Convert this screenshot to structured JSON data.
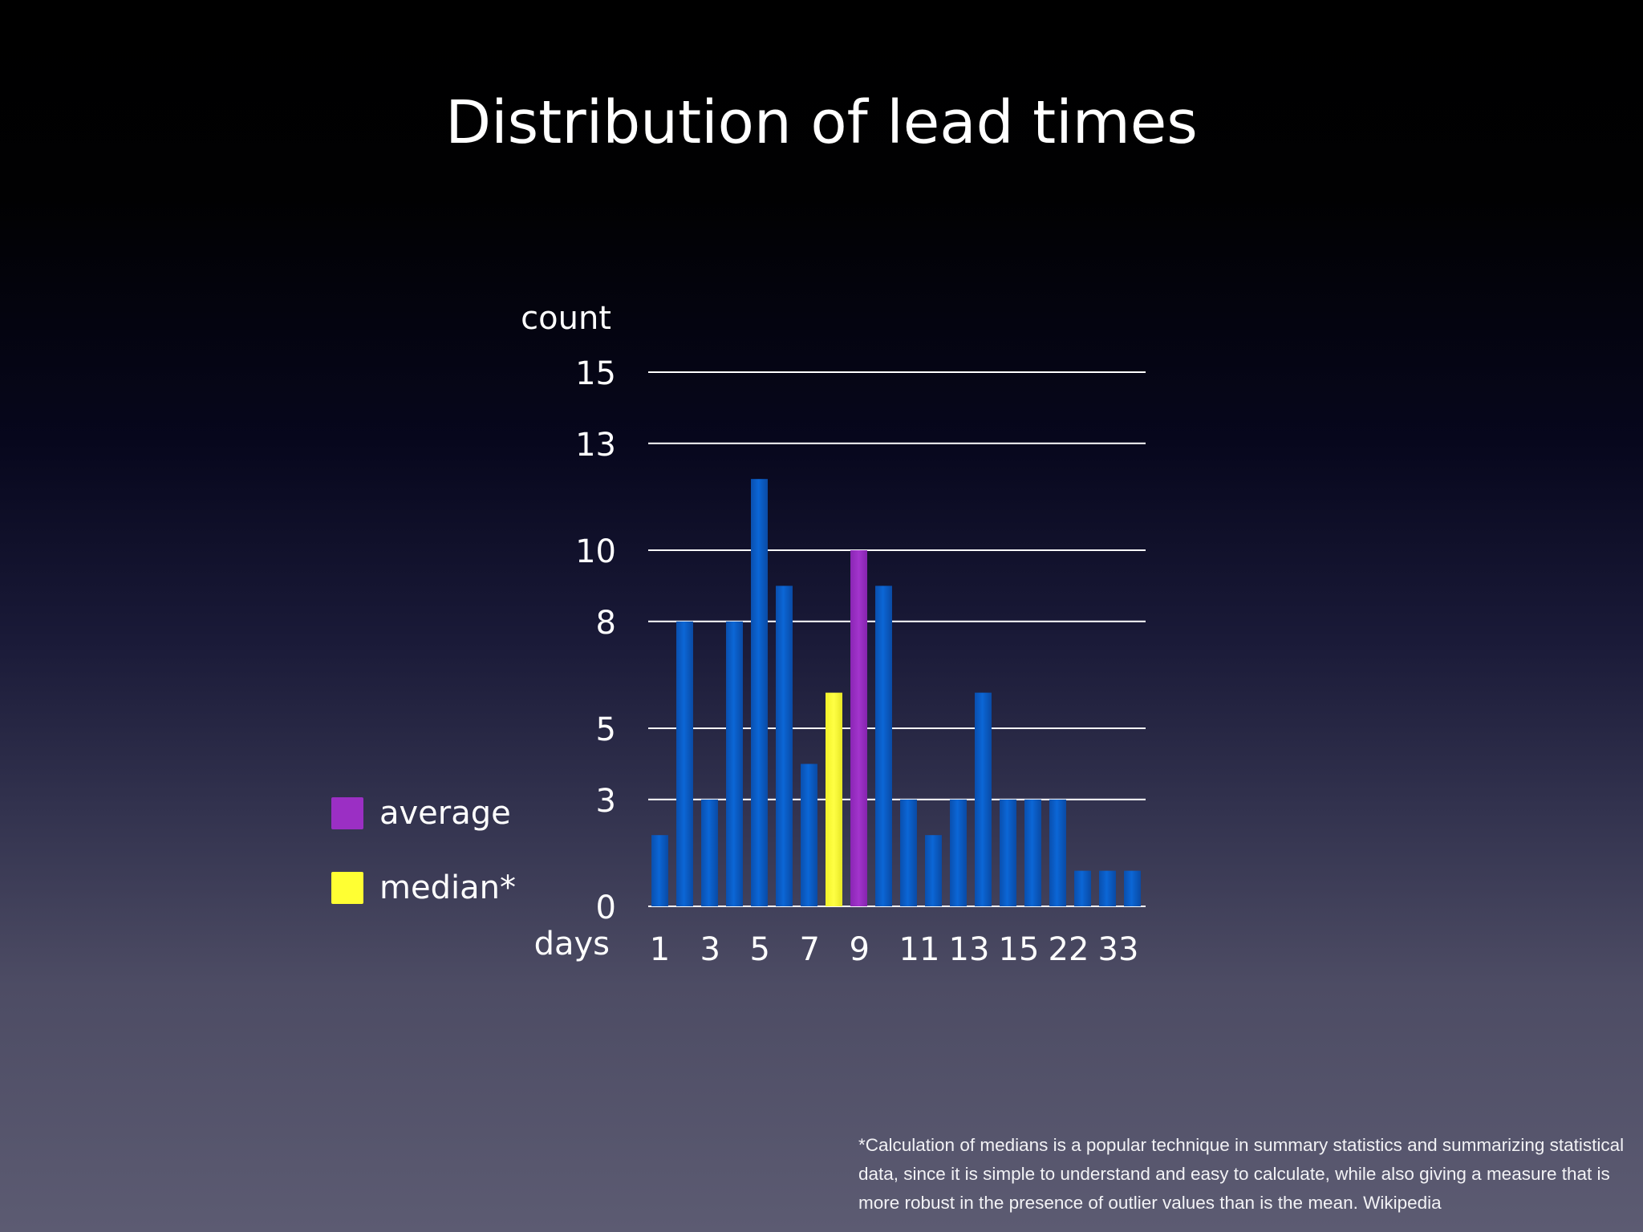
{
  "slide": {
    "title": "Distribution of lead times",
    "footnote": "*Calculation of medians is a popular technique in summary statistics and summarizing statistical data, since it is simple to understand and easy to calculate, while also giving a measure that is more robust in the presence of outlier values than is the mean. Wikipedia"
  },
  "legend": {
    "average_label": "average",
    "median_label": "median*",
    "average_color": "#9b2fc4",
    "median_color": "#ffff33"
  },
  "chart_data": {
    "type": "bar",
    "title": "Distribution of lead times",
    "ylabel": "count",
    "xlabel": "days",
    "ylim": [
      0,
      15
    ],
    "yticks": [
      "0",
      "3",
      "5",
      "8",
      "10",
      "13",
      "15"
    ],
    "xtick_labels": [
      "1",
      "3",
      "5",
      "7",
      "9",
      "11",
      "13",
      "15",
      "22",
      "33"
    ],
    "grid": true,
    "legend_position": "left",
    "bar_color": "#0a5cc4",
    "values": [
      2,
      8,
      3,
      8,
      12,
      9,
      4,
      6,
      10,
      9,
      3,
      2,
      3,
      6,
      3,
      3,
      3,
      1,
      1,
      1
    ],
    "highlights": [
      {
        "index": 7,
        "role": "median",
        "color": "#ffff33"
      },
      {
        "index": 8,
        "role": "average",
        "color": "#9b2fc4"
      }
    ]
  }
}
